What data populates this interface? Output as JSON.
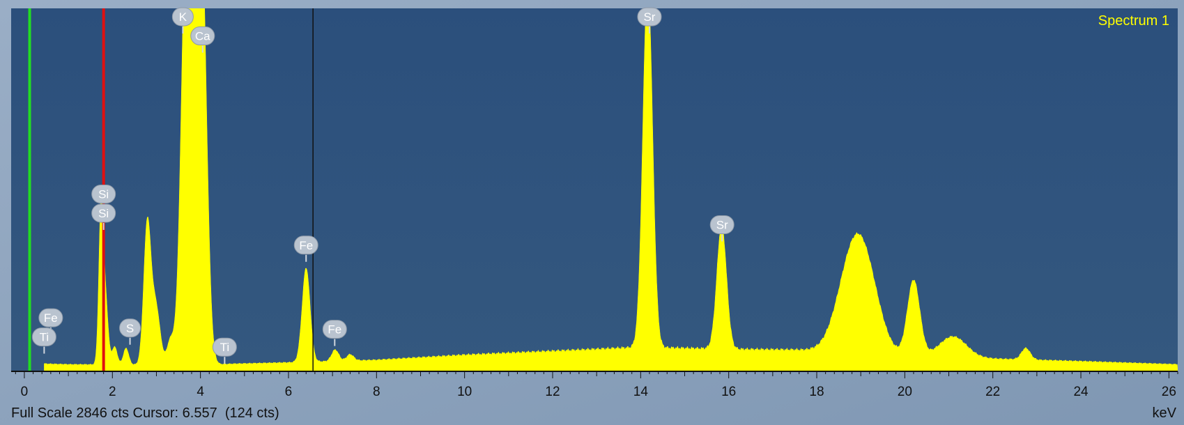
{
  "spectrum_name": "Spectrum 1",
  "status": {
    "full_scale_text": "Full Scale 2846 cts Cursor: 6.557  (124 cts)",
    "unit": "keV"
  },
  "colors": {
    "plot_background": "#2e5580",
    "outer_background": "#8ea4bf",
    "spectrum_fill": "#ffff00",
    "spectrum_name": "#ffff00",
    "marker_green": "#22dd22",
    "marker_red": "#e01010",
    "cursor_line": "#111111",
    "label_badge": "#b9c3cf"
  },
  "chart_data": {
    "type": "area",
    "title": "Spectrum 1",
    "xlabel": "keV",
    "ylabel": "",
    "xlim": [
      -0.3,
      26.2
    ],
    "ylim": [
      0,
      2846
    ],
    "x_ticks": [
      0,
      2,
      4,
      6,
      8,
      10,
      12,
      14,
      16,
      18,
      20,
      22,
      24,
      26
    ],
    "grid": false,
    "baseline": [
      [
        0.45,
        60
      ],
      [
        1.0,
        55
      ],
      [
        4.0,
        50
      ],
      [
        4.8,
        60
      ],
      [
        6.0,
        70
      ],
      [
        8.0,
        90
      ],
      [
        10.0,
        130
      ],
      [
        12.0,
        160
      ],
      [
        14.0,
        190
      ],
      [
        16.0,
        175
      ],
      [
        17.5,
        170
      ],
      [
        20.0,
        130
      ],
      [
        22.0,
        100
      ],
      [
        24.0,
        80
      ],
      [
        26.2,
        55
      ]
    ],
    "peaks": [
      {
        "element": "Si",
        "x": 1.74,
        "height": 1200,
        "width": 0.05
      },
      {
        "element": "Si",
        "x": 1.84,
        "height": 520,
        "width": 0.06
      },
      {
        "element": "",
        "x": 2.05,
        "height": 140,
        "width": 0.06
      },
      {
        "element": "S",
        "x": 2.31,
        "height": 130,
        "width": 0.06
      },
      {
        "element": "",
        "x": 2.79,
        "height": 1080,
        "width": 0.08
      },
      {
        "element": "",
        "x": 2.98,
        "height": 470,
        "width": 0.1
      },
      {
        "element": "",
        "x": 3.32,
        "height": 190,
        "width": 0.08
      },
      {
        "element": "K",
        "x": 3.69,
        "height": 3600,
        "width": 0.12
      },
      {
        "element": "Ca",
        "x": 4.01,
        "height": 3600,
        "width": 0.12
      },
      {
        "element": "Fe",
        "x": 6.4,
        "height": 740,
        "width": 0.09
      },
      {
        "element": "Fe",
        "x": 7.06,
        "height": 90,
        "width": 0.08
      },
      {
        "element": "",
        "x": 7.4,
        "height": 50,
        "width": 0.08
      },
      {
        "element": "Sr",
        "x": 14.16,
        "height": 2900,
        "width": 0.11
      },
      {
        "element": "Sr",
        "x": 15.84,
        "height": 975,
        "width": 0.11
      },
      {
        "element": "",
        "x": 18.85,
        "height": 780,
        "width": 0.35
      },
      {
        "element": "",
        "x": 19.2,
        "height": 260,
        "width": 0.3
      },
      {
        "element": "",
        "x": 20.2,
        "height": 590,
        "width": 0.14
      },
      {
        "element": "",
        "x": 21.1,
        "height": 160,
        "width": 0.3
      },
      {
        "element": "",
        "x": 22.75,
        "height": 90,
        "width": 0.1
      }
    ],
    "element_labels": [
      {
        "label": "K",
        "x": 3.6,
        "counts": 2780
      },
      {
        "label": "Ca",
        "x": 4.05,
        "counts": 2630
      },
      {
        "label": "Si",
        "x": 1.8,
        "counts": 1390
      },
      {
        "label": "Si",
        "x": 1.8,
        "counts": 1240
      },
      {
        "label": "Fe",
        "x": 6.4,
        "counts": 990
      },
      {
        "label": "Fe",
        "x": 0.6,
        "counts": 420
      },
      {
        "label": "Ti",
        "x": 0.45,
        "counts": 270
      },
      {
        "label": "S",
        "x": 2.4,
        "counts": 340
      },
      {
        "label": "Ti",
        "x": 4.55,
        "counts": 190
      },
      {
        "label": "Fe",
        "x": 7.05,
        "counts": 330
      },
      {
        "label": "Sr",
        "x": 14.2,
        "counts": 2780
      },
      {
        "label": "Sr",
        "x": 15.85,
        "counts": 1150
      }
    ],
    "markers": [
      {
        "name": "green-marker",
        "x": 0.12,
        "color": "#22dd22"
      },
      {
        "name": "red-marker",
        "x": 1.8,
        "color": "#e01010"
      },
      {
        "name": "cursor",
        "x": 6.557,
        "color": "#111111"
      }
    ]
  }
}
